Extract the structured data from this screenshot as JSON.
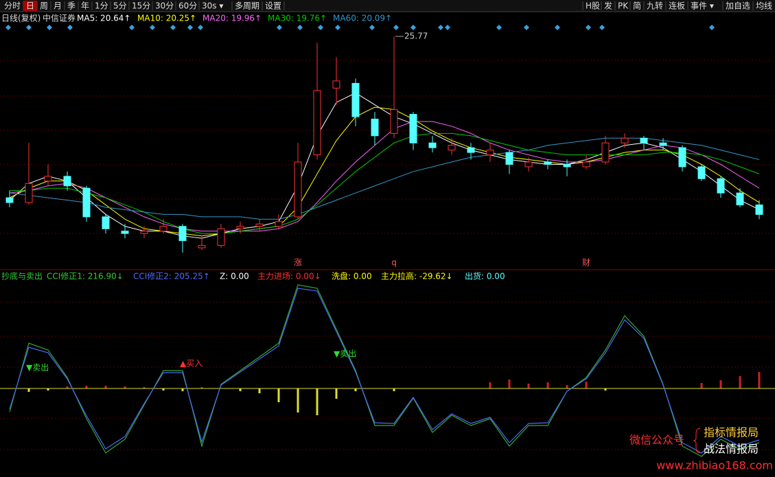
{
  "toolbar": {
    "left": [
      "分时",
      "日",
      "周",
      "月",
      "季",
      "年",
      "1分",
      "5分",
      "15分",
      "30分",
      "60分",
      "30s ▾",
      "多周期",
      "设置"
    ],
    "right": [
      "H股",
      "发",
      "PK",
      "简",
      "九转",
      "连板",
      "事件 ▾",
      "加自选",
      "均线"
    ],
    "active": 1
  },
  "price_panel": {
    "title": "日线(复权)",
    "stock": "中信证券",
    "legend": [
      {
        "text": "MA5: 20.64↑",
        "color": "#ffffff"
      },
      {
        "text": "MA10: 20.25↑",
        "color": "#ffff00"
      },
      {
        "text": "MA20: 19.96↑",
        "color": "#ff66ff"
      },
      {
        "text": "MA30: 19.76↑",
        "color": "#00cc00"
      },
      {
        "text": "MA60: 20.09↑",
        "color": "#3399cc"
      }
    ],
    "events": [
      {
        "text": "涨",
        "index": 15
      },
      {
        "text": "q",
        "index": 20
      },
      {
        "text": "财",
        "index": 30
      }
    ],
    "peak_index": 20,
    "candles": {
      "open": [
        19.0,
        18.8,
        19.7,
        19.9,
        19.4,
        18.2,
        17.6,
        17.5,
        17.6,
        17.8,
        16.9,
        17.0,
        17.7,
        17.8,
        17.8,
        18.2,
        20.8,
        23.6,
        23.8,
        22.3,
        21.7,
        22.5,
        21.3,
        21.0,
        21.1,
        20.8,
        20.9,
        20.3,
        20.5,
        20.4,
        20.3,
        20.5,
        21.3,
        21.5,
        21.3,
        21.1,
        20.3,
        19.8,
        19.2,
        18.7
      ],
      "high": [
        19.3,
        21.3,
        20.4,
        20.1,
        19.5,
        18.3,
        17.9,
        17.8,
        18.1,
        17.9,
        17.4,
        17.9,
        18.0,
        18.1,
        18.3,
        21.3,
        25.5,
        24.9,
        24.0,
        22.6,
        25.77,
        22.6,
        21.6,
        21.5,
        21.3,
        21.3,
        21.0,
        20.7,
        20.6,
        20.6,
        20.8,
        21.6,
        21.7,
        21.6,
        21.5,
        21.2,
        20.4,
        19.9,
        19.4,
        18.9
      ],
      "low": [
        18.6,
        18.7,
        19.5,
        19.3,
        18.0,
        17.5,
        17.3,
        17.3,
        17.5,
        16.7,
        16.8,
        16.9,
        17.5,
        17.6,
        17.7,
        18.1,
        20.6,
        22.9,
        22.0,
        21.2,
        21.5,
        21.0,
        20.9,
        20.8,
        20.6,
        20.5,
        20.0,
        20.1,
        20.2,
        19.9,
        20.2,
        20.4,
        21.1,
        21.0,
        21.0,
        20.1,
        19.7,
        19.0,
        18.6,
        18.1
      ],
      "close": [
        18.8,
        19.6,
        19.9,
        19.5,
        18.2,
        17.7,
        17.5,
        17.6,
        17.8,
        17.2,
        17.0,
        17.7,
        17.8,
        17.9,
        18.0,
        20.5,
        23.5,
        23.9,
        22.4,
        21.6,
        22.7,
        21.3,
        21.1,
        21.2,
        20.9,
        21.0,
        20.4,
        20.5,
        20.4,
        20.3,
        20.5,
        21.3,
        21.5,
        21.3,
        21.2,
        20.3,
        19.8,
        19.2,
        18.7,
        18.3
      ],
      "up_color": "#ff3232",
      "down_color": "#54ffff"
    },
    "ma_lines": [
      {
        "color": "#ffffff",
        "values": [
          18.9,
          19.6,
          19.9,
          19.7,
          19.0,
          18.3,
          17.8,
          17.6,
          17.6,
          17.4,
          17.3,
          17.5,
          17.7,
          17.8,
          18.0,
          19.5,
          21.6,
          23.0,
          23.4,
          22.9,
          22.4,
          22.1,
          21.7,
          21.3,
          21.0,
          20.8,
          20.6,
          20.5,
          20.4,
          20.4,
          20.6,
          20.9,
          21.2,
          21.3,
          21.1,
          20.6,
          20.1,
          19.5,
          18.9,
          18.5
        ]
      },
      {
        "color": "#ffff00",
        "values": [
          19.0,
          19.4,
          19.7,
          19.7,
          19.3,
          18.7,
          18.1,
          17.7,
          17.6,
          17.5,
          17.4,
          17.5,
          17.6,
          17.7,
          17.8,
          18.6,
          20.0,
          21.4,
          22.4,
          22.8,
          22.7,
          22.3,
          21.8,
          21.4,
          21.1,
          20.9,
          20.7,
          20.6,
          20.5,
          20.4,
          20.5,
          20.7,
          20.9,
          21.0,
          21.0,
          20.8,
          20.4,
          19.9,
          19.3,
          18.8
        ]
      },
      {
        "color": "#ff66ff",
        "values": [
          19.2,
          19.3,
          19.5,
          19.6,
          19.4,
          19.0,
          18.6,
          18.2,
          17.9,
          17.7,
          17.6,
          17.6,
          17.6,
          17.6,
          17.7,
          18.0,
          18.8,
          19.7,
          20.5,
          21.2,
          21.9,
          22.2,
          22.2,
          22.0,
          21.7,
          21.3,
          21.0,
          20.8,
          20.6,
          20.5,
          20.5,
          20.6,
          20.8,
          21.0,
          21.2,
          21.1,
          20.8,
          20.4,
          19.9,
          19.4
        ]
      },
      {
        "color": "#00cc00",
        "values": [
          19.3,
          19.3,
          19.4,
          19.4,
          19.2,
          19.0,
          18.7,
          18.4,
          18.0,
          17.7,
          17.5,
          17.5,
          17.6,
          17.7,
          17.8,
          18.1,
          18.7,
          19.4,
          20.1,
          20.7,
          21.3,
          21.6,
          21.7,
          21.7,
          21.6,
          21.4,
          21.2,
          21.0,
          20.9,
          20.8,
          20.8,
          20.8,
          20.8,
          20.8,
          20.9,
          20.9,
          20.8,
          20.6,
          20.3,
          20.0
        ]
      },
      {
        "color": "#3399cc",
        "values": [
          19.2,
          19.1,
          19.0,
          18.9,
          18.8,
          18.6,
          18.5,
          18.4,
          18.3,
          18.3,
          18.2,
          18.2,
          18.2,
          18.1,
          18.1,
          18.3,
          18.6,
          18.9,
          19.2,
          19.5,
          19.8,
          20.1,
          20.3,
          20.5,
          20.7,
          20.8,
          20.9,
          21.0,
          21.2,
          21.3,
          21.4,
          21.5,
          21.5,
          21.5,
          21.4,
          21.3,
          21.2,
          21.0,
          20.8,
          20.6
        ]
      }
    ]
  },
  "indicator_panel": {
    "legend": [
      {
        "text": "抄底与卖出",
        "color": "#33cc33"
      },
      {
        "text": "CCI修正1: 216.90↓",
        "color": "#33cc33"
      },
      {
        "text": "CCI修正2: 205.25↑",
        "color": "#4a6cff"
      },
      {
        "text": "Z: 0.00",
        "color": "#ffffff"
      },
      {
        "text": "主力进场: 0.00↓",
        "color": "#ff3232"
      },
      {
        "text": "洗盘: 0.00",
        "color": "#ffff00"
      },
      {
        "text": "主力拉高: -29.62↓",
        "color": "#ffff00"
      },
      {
        "text": "出货: 0.00",
        "color": "#54ffff"
      }
    ],
    "lines": [
      {
        "color": "#33aa33",
        "values": [
          -68,
          132,
          112,
          32,
          -88,
          -188,
          -148,
          -48,
          52,
          52,
          -168,
          12,
          52,
          92,
          132,
          302,
          292,
          172,
          52,
          -108,
          -108,
          -28,
          -128,
          -78,
          -108,
          -88,
          -168,
          -108,
          -108,
          -8,
          32,
          112,
          212,
          152,
          12,
          -168,
          -198,
          -148,
          -178,
          -158
        ]
      },
      {
        "color": "#4a6cff",
        "values": [
          -60,
          120,
          104,
          28,
          -80,
          -176,
          -140,
          -44,
          46,
          46,
          -156,
          10,
          48,
          86,
          124,
          292,
          284,
          166,
          48,
          -100,
          -102,
          -26,
          -120,
          -74,
          -102,
          -84,
          -158,
          -102,
          -100,
          -8,
          28,
          104,
          200,
          146,
          10,
          -158,
          -188,
          -140,
          -168,
          -150
        ]
      }
    ],
    "histogram": {
      "values": [
        0,
        -10,
        -6,
        6,
        8,
        8,
        6,
        4,
        -6,
        -8,
        4,
        0,
        -8,
        -14,
        -40,
        -70,
        -78,
        -30,
        -8,
        0,
        -8,
        0,
        0,
        0,
        0,
        18,
        26,
        14,
        18,
        10,
        20,
        -6,
        0,
        0,
        0,
        0,
        16,
        24,
        36,
        48
      ],
      "up_color": "#cc2222",
      "down_color": "#dddd33"
    },
    "signals": [
      {
        "text": "▼卖出",
        "index": 1,
        "color": "#33dd33",
        "side": "top"
      },
      {
        "text": "▲买入",
        "index": 9,
        "color": "#ff3232",
        "side": "bottom"
      },
      {
        "text": "▼卖出",
        "index": 17,
        "color": "#33dd33",
        "side": "top"
      }
    ]
  },
  "watermark": {
    "label": "微信公众号",
    "names": [
      "指标情报局",
      "战法情报局"
    ],
    "url": "www.zhibiao168.com"
  }
}
